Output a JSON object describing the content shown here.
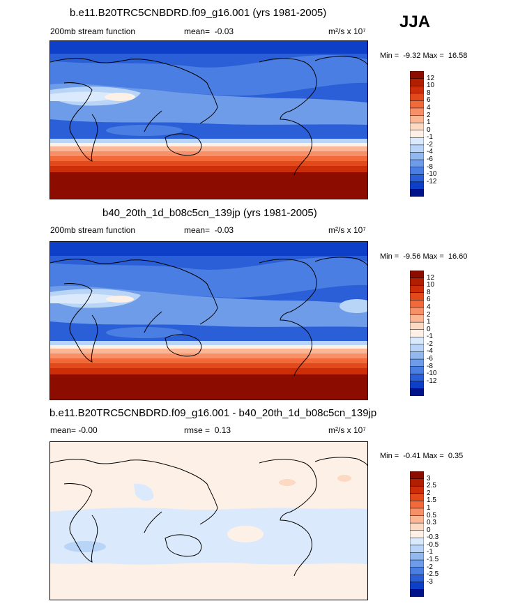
{
  "season": "JJA",
  "panels": [
    {
      "title": "b.e11.B20TRC5CNBDRD.f09_g16.001 (yrs 1981-2005)",
      "left_text": "200mb stream function",
      "mid_label": "mean=",
      "mid_value": "-0.03",
      "units": "m²/s x 10⁷",
      "min_label": "Min =",
      "min_value": "-9.32",
      "max_label": "Max =",
      "max_value": "16.58",
      "levels": [
        "12",
        "10",
        "8",
        "6",
        "4",
        "2",
        "1",
        "0",
        "-1",
        "-2",
        "-4",
        "-6",
        "-8",
        "-10",
        "-12"
      ],
      "colors": [
        "#8c0d00",
        "#b21e00",
        "#cc2e0a",
        "#e34a1b",
        "#f26a3a",
        "#f79068",
        "#fbb696",
        "#fcd9c3",
        "#fdf0e6",
        "#dae9fb",
        "#b8d4f6",
        "#92b8f0",
        "#6e9ce9",
        "#4a7ee2",
        "#2a5fd8",
        "#0d3fc9",
        "#00138a"
      ]
    },
    {
      "title": "b40_20th_1d_b08c5cn_139jp (yrs 1981-2005)",
      "left_text": "200mb stream function",
      "mid_label": "mean=",
      "mid_value": "-0.03",
      "units": "m²/s x 10⁷",
      "min_label": "Min =",
      "min_value": "-9.56",
      "max_label": "Max =",
      "max_value": "16.60",
      "levels": [
        "12",
        "10",
        "8",
        "6",
        "4",
        "2",
        "1",
        "0",
        "-1",
        "-2",
        "-4",
        "-6",
        "-8",
        "-10",
        "-12"
      ],
      "colors": [
        "#8c0d00",
        "#b21e00",
        "#cc2e0a",
        "#e34a1b",
        "#f26a3a",
        "#f79068",
        "#fbb696",
        "#fcd9c3",
        "#fdf0e6",
        "#dae9fb",
        "#b8d4f6",
        "#92b8f0",
        "#6e9ce9",
        "#4a7ee2",
        "#2a5fd8",
        "#0d3fc9",
        "#00138a"
      ]
    },
    {
      "title": "b.e11.B20TRC5CNBDRD.f09_g16.001 - b40_20th_1d_b08c5cn_139jp",
      "left_text": "mean=  -0.00",
      "mid_label": "rmse =",
      "mid_value": "0.13",
      "units": "m²/s x 10⁷",
      "min_label": "Min =",
      "min_value": "-0.41",
      "max_label": "Max =",
      "max_value": "0.35",
      "levels": [
        "3",
        "2.5",
        "2",
        "1.5",
        "1",
        "0.5",
        "0.3",
        "0",
        "-0.3",
        "-0.5",
        "-1",
        "-1.5",
        "-2",
        "-2.5",
        "-3"
      ],
      "colors": [
        "#8c0d00",
        "#b21e00",
        "#cc2e0a",
        "#e34a1b",
        "#f26a3a",
        "#f79068",
        "#fbb696",
        "#fcd9c3",
        "#fdf0e6",
        "#dae9fb",
        "#b8d4f6",
        "#92b8f0",
        "#6e9ce9",
        "#4a7ee2",
        "#2a5fd8",
        "#0d3fc9",
        "#00138a"
      ]
    }
  ],
  "chart_data": [
    {
      "type": "heatmap",
      "title": "b.e11.B20TRC5CNBDRD.f09_g16.001 (yrs 1981-2005)",
      "variable": "200mb stream function",
      "units": "m²/s x 10⁷",
      "mean": -0.03,
      "min": -9.32,
      "max": 16.58,
      "contour_levels": [
        -12,
        -10,
        -8,
        -6,
        -4,
        -2,
        -1,
        0,
        1,
        2,
        4,
        6,
        8,
        10,
        12
      ],
      "xlim": [
        0,
        360
      ],
      "ylim": [
        -90,
        90
      ]
    },
    {
      "type": "heatmap",
      "title": "b40_20th_1d_b08c5cn_139jp (yrs 1981-2005)",
      "variable": "200mb stream function",
      "units": "m²/s x 10⁷",
      "mean": -0.03,
      "min": -9.56,
      "max": 16.6,
      "contour_levels": [
        -12,
        -10,
        -8,
        -6,
        -4,
        -2,
        -1,
        0,
        1,
        2,
        4,
        6,
        8,
        10,
        12
      ],
      "xlim": [
        0,
        360
      ],
      "ylim": [
        -90,
        90
      ]
    },
    {
      "type": "heatmap",
      "title": "b.e11.B20TRC5CNBDRD.f09_g16.001 - b40_20th_1d_b08c5cn_139jp",
      "units": "m²/s x 10⁷",
      "mean": -0.0,
      "rmse": 0.13,
      "min": -0.41,
      "max": 0.35,
      "contour_levels": [
        -3,
        -2.5,
        -2,
        -1.5,
        -1,
        -0.5,
        -0.3,
        0,
        0.3,
        0.5,
        1,
        1.5,
        2,
        2.5,
        3
      ],
      "xlim": [
        0,
        360
      ],
      "ylim": [
        -90,
        90
      ]
    }
  ]
}
